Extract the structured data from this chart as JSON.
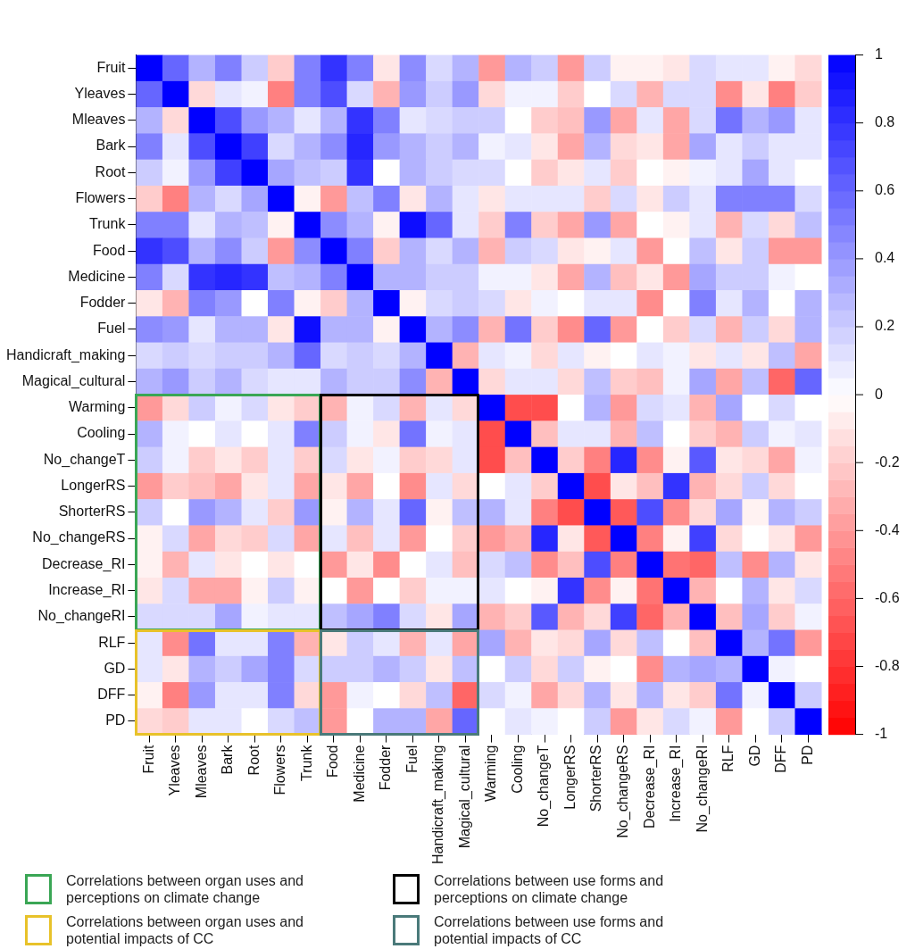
{
  "chart_data": {
    "type": "heatmap",
    "categories": [
      "Fruit",
      "Yleaves",
      "Mleaves",
      "Bark",
      "Root",
      "Flowers",
      "Trunk",
      "Food",
      "Medicine",
      "Fodder",
      "Fuel",
      "Handicraft_making",
      "Magical_cultural",
      "Warming",
      "Cooling",
      "No_changeT",
      "LongerRS",
      "ShorterRS",
      "No_changeRS",
      "Decrease_RI",
      "Increase_RI",
      "No_changeRI",
      "RLF",
      "GD",
      "DFF",
      "PD"
    ],
    "y_categories": [
      "Fruit",
      "Yleaves",
      "Mleaves",
      "Bark",
      "Root",
      "Flowers",
      "Trunk",
      "Food",
      "Medicine",
      "Fodder",
      "Fuel",
      "Handicraft_making",
      "Magical_cultural",
      "Warming",
      "Cooling",
      "No_changeT",
      "LongerRS",
      "ShorterRS",
      "No_changeRS",
      "Decrease_RI",
      "Increase_RI",
      "No_changeRI",
      "RLF",
      "GD",
      "DFF",
      "PD"
    ],
    "cells": [
      [
        1,
        0.6,
        0.3,
        0.5,
        0.2,
        -0.2,
        0.5,
        0.8,
        0.5,
        -0.1,
        0.45,
        0.15,
        0.3,
        -0.4,
        0.3,
        0.2,
        -0.4,
        0.2,
        -0.05,
        -0.05,
        -0.1,
        0.15,
        0.1,
        0.1,
        -0.05,
        -0.15
      ],
      [
        0.6,
        1,
        -0.15,
        0.1,
        0.05,
        -0.5,
        0.5,
        0.7,
        0.15,
        -0.3,
        0.4,
        0.2,
        0.4,
        -0.15,
        0.05,
        0.05,
        -0.2,
        0.0,
        0.15,
        -0.3,
        0.15,
        0.15,
        -0.45,
        -0.1,
        -0.5,
        -0.2
      ],
      [
        0.3,
        -0.15,
        1,
        0.7,
        0.4,
        0.3,
        0.1,
        0.3,
        0.8,
        0.5,
        0.1,
        0.15,
        0.2,
        0.2,
        0.0,
        -0.2,
        -0.25,
        0.4,
        -0.35,
        0.1,
        -0.35,
        0.15,
        0.55,
        0.3,
        0.4,
        0.1
      ],
      [
        0.5,
        0.1,
        0.7,
        1,
        0.75,
        0.15,
        0.3,
        0.45,
        0.85,
        0.4,
        0.3,
        0.2,
        0.3,
        0.05,
        0.1,
        -0.1,
        -0.35,
        0.3,
        -0.15,
        -0.1,
        -0.35,
        0.35,
        0.1,
        0.2,
        0.1,
        0.1
      ],
      [
        0.2,
        0.05,
        0.4,
        0.75,
        1,
        0.35,
        0.25,
        0.2,
        0.8,
        0.0,
        0.3,
        0.2,
        0.15,
        0.15,
        0.0,
        -0.2,
        -0.1,
        0.1,
        -0.2,
        0.0,
        -0.05,
        0.05,
        0.1,
        0.35,
        0.1,
        0.0
      ],
      [
        -0.2,
        -0.5,
        0.3,
        0.15,
        0.35,
        1,
        -0.05,
        -0.4,
        0.25,
        0.5,
        -0.1,
        0.3,
        0.1,
        -0.1,
        0.1,
        0.1,
        0.1,
        -0.2,
        0.15,
        -0.1,
        0.2,
        0.1,
        0.5,
        0.5,
        0.5,
        0.15
      ],
      [
        0.5,
        0.5,
        0.1,
        0.3,
        0.25,
        -0.05,
        1,
        0.45,
        0.3,
        -0.05,
        0.95,
        0.6,
        0.1,
        -0.2,
        0.5,
        -0.2,
        -0.35,
        0.4,
        -0.35,
        0.0,
        -0.05,
        0.1,
        -0.3,
        0.15,
        -0.15,
        0.25
      ],
      [
        0.8,
        0.7,
        0.3,
        0.45,
        0.2,
        -0.4,
        0.45,
        1,
        0.5,
        -0.2,
        0.3,
        0.15,
        0.3,
        -0.3,
        0.2,
        0.15,
        -0.1,
        -0.05,
        0.1,
        -0.4,
        0.0,
        0.25,
        -0.1,
        0.2,
        -0.4,
        -0.4
      ],
      [
        0.5,
        0.15,
        0.8,
        0.85,
        0.8,
        0.25,
        0.3,
        0.5,
        1,
        0.3,
        0.3,
        0.2,
        0.2,
        0.05,
        0.05,
        -0.1,
        -0.35,
        0.3,
        -0.25,
        -0.1,
        -0.4,
        0.35,
        0.2,
        0.2,
        0.05,
        0.0
      ],
      [
        -0.1,
        -0.3,
        0.5,
        0.4,
        0.0,
        0.5,
        -0.05,
        -0.2,
        0.3,
        1,
        -0.05,
        0.15,
        0.2,
        0.15,
        -0.1,
        0.05,
        0.0,
        0.1,
        0.1,
        -0.45,
        0.0,
        0.5,
        0.1,
        0.3,
        0.0,
        0.3
      ],
      [
        0.45,
        0.4,
        0.1,
        0.3,
        0.3,
        -0.1,
        0.95,
        0.3,
        0.3,
        -0.05,
        1,
        0.3,
        0.45,
        -0.3,
        0.55,
        -0.2,
        -0.45,
        0.6,
        -0.4,
        0.0,
        -0.2,
        0.15,
        -0.3,
        0.2,
        -0.15,
        0.3
      ],
      [
        0.15,
        0.2,
        0.15,
        0.2,
        0.2,
        0.3,
        0.6,
        0.15,
        0.2,
        0.15,
        0.3,
        1,
        -0.3,
        0.1,
        0.05,
        -0.15,
        0.1,
        -0.05,
        0.0,
        0.1,
        0.05,
        -0.1,
        0.1,
        -0.1,
        0.25,
        -0.35
      ],
      [
        0.3,
        0.4,
        0.2,
        0.3,
        0.15,
        0.1,
        0.1,
        0.3,
        0.2,
        0.2,
        0.45,
        -0.3,
        1,
        -0.15,
        0.1,
        0.1,
        -0.15,
        0.25,
        -0.2,
        -0.25,
        0.05,
        0.35,
        -0.35,
        0.25,
        -0.6,
        0.6
      ],
      [
        -0.4,
        -0.15,
        0.2,
        0.05,
        0.15,
        -0.1,
        -0.2,
        -0.3,
        0.05,
        0.15,
        -0.3,
        0.1,
        -0.15,
        1,
        -0.7,
        -0.7,
        0.0,
        0.3,
        -0.4,
        0.15,
        0.1,
        -0.3,
        0.35,
        0.0,
        0.15,
        0.0
      ],
      [
        0.3,
        0.05,
        0.0,
        0.1,
        0.0,
        0.1,
        0.5,
        0.2,
        0.05,
        -0.1,
        0.55,
        0.05,
        0.1,
        -0.7,
        1,
        -0.25,
        0.1,
        0.1,
        -0.3,
        0.25,
        0.0,
        -0.2,
        -0.3,
        0.2,
        0.05,
        0.1
      ],
      [
        0.2,
        0.05,
        -0.2,
        -0.1,
        -0.2,
        0.1,
        -0.2,
        0.15,
        -0.1,
        0.05,
        -0.2,
        -0.15,
        0.1,
        -0.7,
        -0.25,
        1,
        -0.2,
        -0.5,
        0.85,
        -0.45,
        -0.05,
        0.65,
        -0.1,
        -0.15,
        -0.35,
        0.05
      ],
      [
        -0.4,
        -0.2,
        -0.25,
        -0.35,
        -0.1,
        0.1,
        -0.35,
        -0.1,
        -0.35,
        0.0,
        -0.45,
        0.1,
        -0.15,
        0.0,
        0.1,
        -0.2,
        1,
        -0.7,
        -0.1,
        -0.25,
        0.8,
        -0.3,
        -0.15,
        0.2,
        -0.15,
        0.0
      ],
      [
        0.2,
        0.0,
        0.4,
        0.3,
        0.1,
        -0.2,
        0.4,
        -0.05,
        0.3,
        0.1,
        0.6,
        -0.05,
        0.25,
        0.3,
        0.1,
        -0.5,
        -0.7,
        1,
        -0.65,
        0.7,
        -0.45,
        -0.15,
        0.35,
        -0.05,
        0.3,
        0.2
      ],
      [
        -0.05,
        0.15,
        -0.35,
        -0.15,
        -0.2,
        0.15,
        -0.35,
        0.1,
        -0.25,
        0.1,
        -0.4,
        0.0,
        -0.2,
        -0.4,
        -0.3,
        0.85,
        -0.1,
        -0.65,
        1,
        -0.5,
        -0.05,
        0.75,
        -0.15,
        0.0,
        -0.1,
        -0.4
      ],
      [
        -0.05,
        -0.3,
        0.1,
        -0.1,
        0.0,
        -0.1,
        0.0,
        -0.4,
        -0.1,
        -0.45,
        0.0,
        0.1,
        -0.25,
        0.15,
        0.25,
        -0.45,
        -0.25,
        0.7,
        -0.5,
        1,
        -0.55,
        -0.6,
        0.25,
        -0.45,
        0.3,
        -0.1
      ],
      [
        -0.1,
        0.15,
        -0.35,
        -0.35,
        -0.05,
        0.2,
        -0.05,
        0.0,
        -0.4,
        0.0,
        -0.2,
        0.05,
        0.05,
        0.1,
        0.0,
        -0.05,
        0.8,
        -0.45,
        -0.05,
        -0.55,
        1,
        -0.3,
        0.0,
        0.3,
        -0.1,
        0.15
      ],
      [
        0.15,
        0.15,
        0.15,
        0.35,
        0.05,
        0.1,
        0.1,
        0.25,
        0.35,
        0.5,
        0.15,
        -0.1,
        0.35,
        -0.3,
        -0.2,
        0.65,
        -0.3,
        -0.15,
        0.75,
        -0.6,
        -0.3,
        1,
        -0.25,
        0.35,
        -0.2,
        0.05
      ],
      [
        0.1,
        -0.45,
        0.55,
        0.1,
        0.1,
        0.5,
        -0.3,
        -0.1,
        0.2,
        0.1,
        -0.3,
        0.1,
        -0.35,
        0.35,
        -0.3,
        -0.1,
        -0.15,
        0.35,
        -0.15,
        0.25,
        0.0,
        -0.25,
        1,
        0.3,
        0.55,
        -0.4
      ],
      [
        0.1,
        -0.1,
        0.3,
        0.2,
        0.35,
        0.5,
        0.15,
        0.2,
        0.2,
        0.3,
        0.2,
        -0.1,
        0.25,
        0.0,
        0.2,
        -0.15,
        0.2,
        -0.05,
        0.0,
        -0.45,
        0.3,
        0.35,
        0.3,
        1,
        0.05,
        0.0
      ],
      [
        -0.05,
        -0.5,
        0.4,
        0.1,
        0.1,
        0.5,
        -0.15,
        -0.4,
        0.05,
        0.0,
        -0.15,
        0.25,
        -0.6,
        0.15,
        0.05,
        -0.35,
        -0.15,
        0.3,
        -0.1,
        0.3,
        -0.1,
        -0.2,
        0.55,
        0.05,
        1,
        0.2
      ],
      [
        -0.15,
        -0.2,
        0.1,
        0.1,
        0.0,
        0.15,
        0.25,
        -0.4,
        0.0,
        0.3,
        0.3,
        -0.35,
        0.6,
        0.0,
        0.1,
        0.05,
        0.0,
        0.2,
        -0.4,
        -0.1,
        0.15,
        0.05,
        -0.4,
        0.0,
        0.2,
        1
      ]
    ],
    "clim": [
      -1,
      1
    ],
    "cticks": [
      -1,
      -0.8,
      -0.6,
      -0.4,
      -0.2,
      0,
      0.2,
      0.4,
      0.6,
      0.8,
      1
    ],
    "annotations": [
      "Correlations between organ uses and perceptions on climate change",
      "Correlations between use forms and perceptions on climate change",
      "Correlations between organ uses and potential impacts of CC",
      "Correlations between use forms and potential impacts of CC"
    ]
  }
}
